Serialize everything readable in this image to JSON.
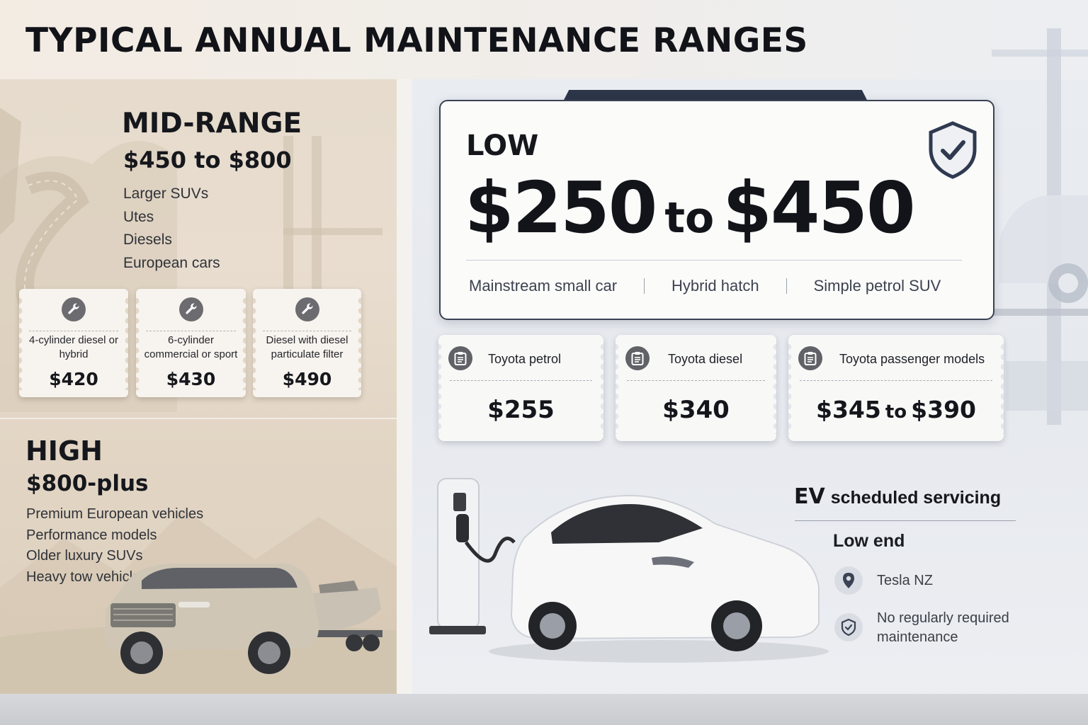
{
  "title": "TYPICAL ANNUAL MAINTENANCE RANGES",
  "mid_range": {
    "label": "MID-RANGE",
    "range": "$450 to $800",
    "items": [
      "Larger SUVs",
      "Utes",
      "Diesels",
      "European cars"
    ],
    "examples": [
      {
        "icon": "wrench-icon",
        "label": "4-cylinder diesel or hybrid",
        "price": "$420"
      },
      {
        "icon": "wrench-icon",
        "label": "6-cylinder commercial or sport",
        "price": "$430"
      },
      {
        "icon": "wrench-icon",
        "label": "Diesel with diesel particulate filter",
        "price": "$490"
      }
    ]
  },
  "high": {
    "label": "HIGH",
    "range": "$800-plus",
    "items": [
      "Premium European vehicles",
      "Performance models",
      "Older luxury SUVs",
      "Heavy tow vehicles"
    ]
  },
  "low": {
    "label": "LOW",
    "range_from": "$250",
    "range_to_word": "to",
    "range_to": "$450",
    "icon": "shield-check-icon",
    "types": [
      "Mainstream small car",
      "Hybrid hatch",
      "Simple petrol SUV"
    ],
    "examples": [
      {
        "icon": "clipboard-icon",
        "label": "Toyota petrol",
        "price": "$255"
      },
      {
        "icon": "clipboard-icon",
        "label": "Toyota diesel",
        "price": "$340"
      },
      {
        "icon": "clipboard-icon",
        "label": "Toyota passenger models",
        "price_from": "$345",
        "price_to_word": "to",
        "price_to": "$390"
      }
    ]
  },
  "ev": {
    "title_bold": "EV",
    "title_rest": "scheduled servicing",
    "subtitle": "Low end",
    "items": [
      {
        "icon": "location-pin-icon",
        "text": "Tesla NZ"
      },
      {
        "icon": "shield-check-icon",
        "text": "No regularly required maintenance"
      }
    ]
  },
  "colors": {
    "card_border": "#3a4254",
    "card_tab": "#2d3548",
    "icon_badge": "#6c6c70",
    "left_panel": "#e6dbcc",
    "right_panel": "#e9ecf1"
  }
}
